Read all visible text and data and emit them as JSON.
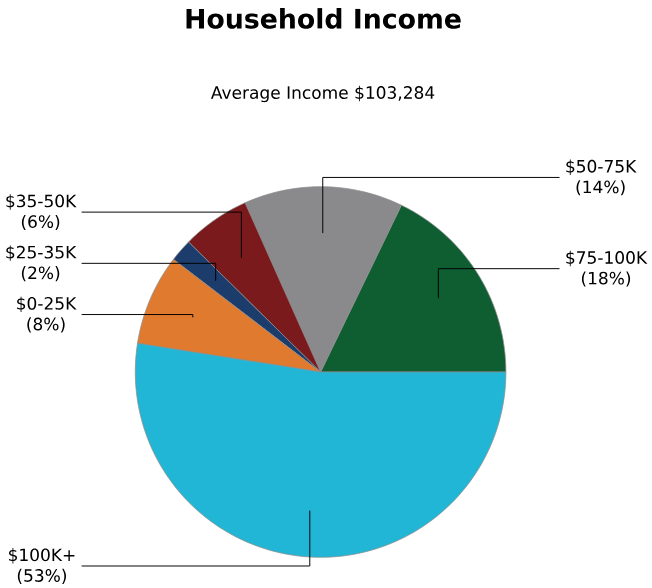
{
  "chart_data": {
    "type": "pie",
    "title": "Household Income",
    "subtitle": "Average Income  $103,284",
    "categories": [
      "$75-100K",
      "$50-75K",
      "$35-50K",
      "$25-35K",
      "$0-25K",
      "$100K+"
    ],
    "values": [
      18,
      14,
      6,
      2,
      8,
      53
    ],
    "colors": [
      "#0e5e32",
      "#8a8a8c",
      "#7a1a1c",
      "#1c3c6c",
      "#e07a2e",
      "#22b6d6"
    ],
    "value_labels": [
      "(18%)",
      "(14%)",
      "(6%)",
      "(2%)",
      "(8%)",
      "(53%)"
    ]
  }
}
